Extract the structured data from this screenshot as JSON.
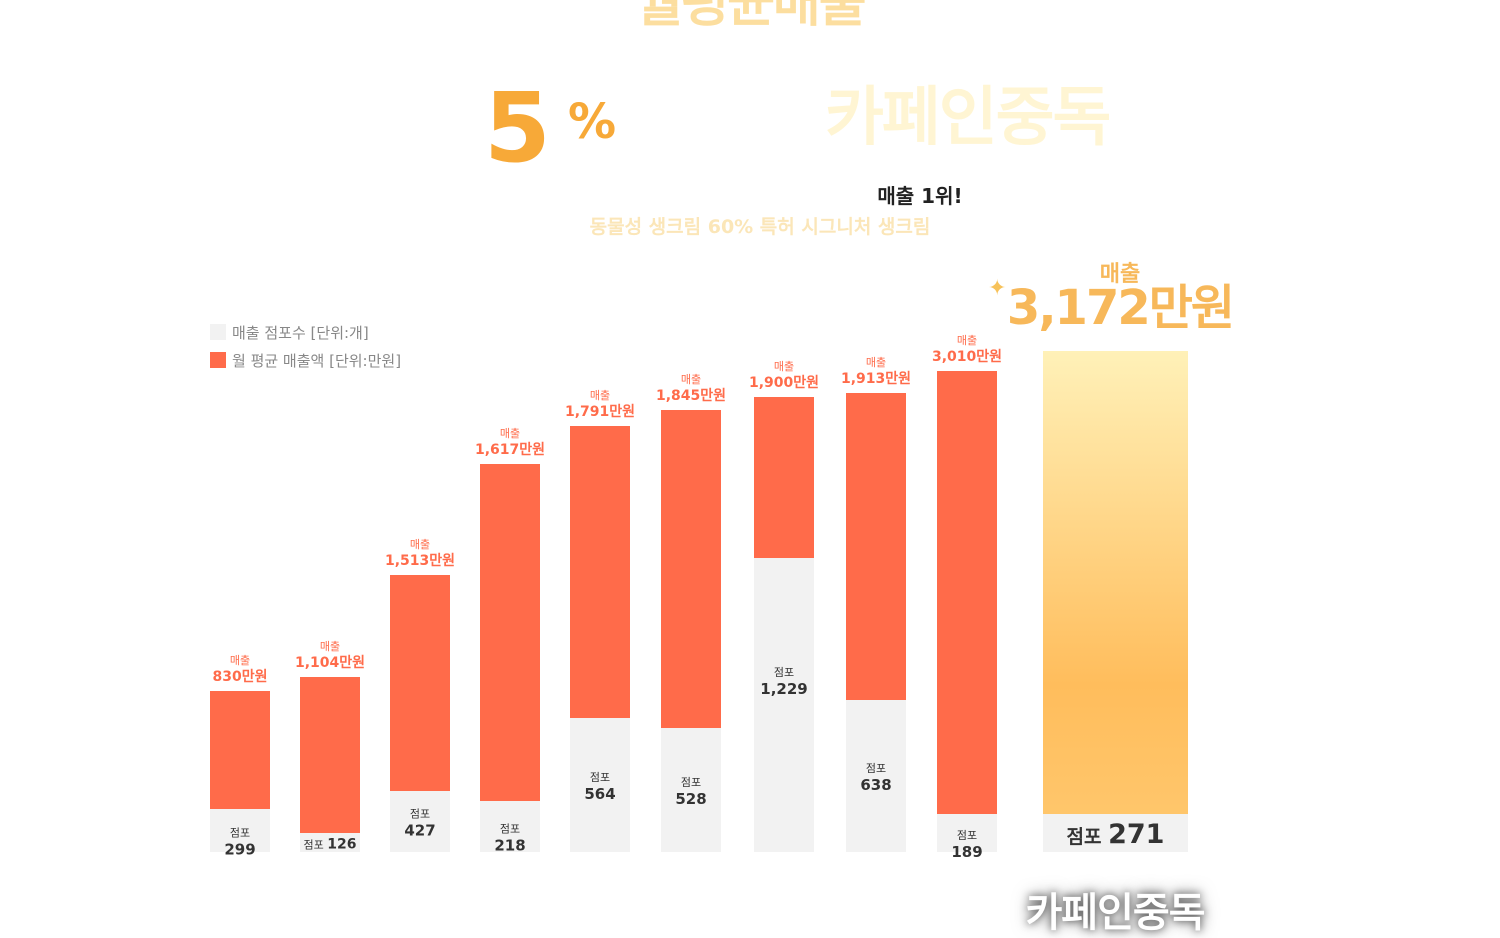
{
  "header": {
    "headline_top": "월평균매출",
    "pct_number": "5",
    "pct_sign": "%",
    "brand_faded": "카페인중독",
    "rank_text": "매출 1위!",
    "subtitle_faded": "동물성 생크림 60% 특허 시그니처 생크림"
  },
  "legend": {
    "stores": "매출 점포수 [단위:개]",
    "sales": "월 평균 매출액 [단위:만원]"
  },
  "colors": {
    "sales_bar": "#ff6b4a",
    "stores_bar": "#f2f2f2",
    "sales_label": "#ff6b4a",
    "highlight_top": "#fff1b8",
    "highlight_bottom": "#ffb95a",
    "highlight_text": "#f7b85a"
  },
  "chart_data": {
    "type": "bar",
    "series": [
      {
        "sales_prefix": "매출",
        "store_prefix": "점포",
        "sales": [
          830,
          1104,
          1513,
          1617,
          1791,
          1845,
          1900,
          1913,
          3010,
          3172
        ],
        "sales_labels": [
          "830만원",
          "1,104만원",
          "1,513만원",
          "1,617만원",
          "1,791만원",
          "1,845만원",
          "1,900만원",
          "1,913만원",
          "3,010만원",
          "3,172만원"
        ],
        "stores": [
          299,
          126,
          427,
          218,
          564,
          528,
          1229,
          638,
          189,
          271
        ],
        "store_labels": [
          "299",
          "126",
          "427",
          "218",
          "564",
          "528",
          "1,229",
          "638",
          "189",
          "271"
        ]
      }
    ],
    "highlight_index": 9
  },
  "highlight": {
    "label_top": "매출",
    "label_value": "3,172만원",
    "store_prefix": "점포",
    "store_value": "271",
    "brand_bottom": "카페인중독"
  }
}
